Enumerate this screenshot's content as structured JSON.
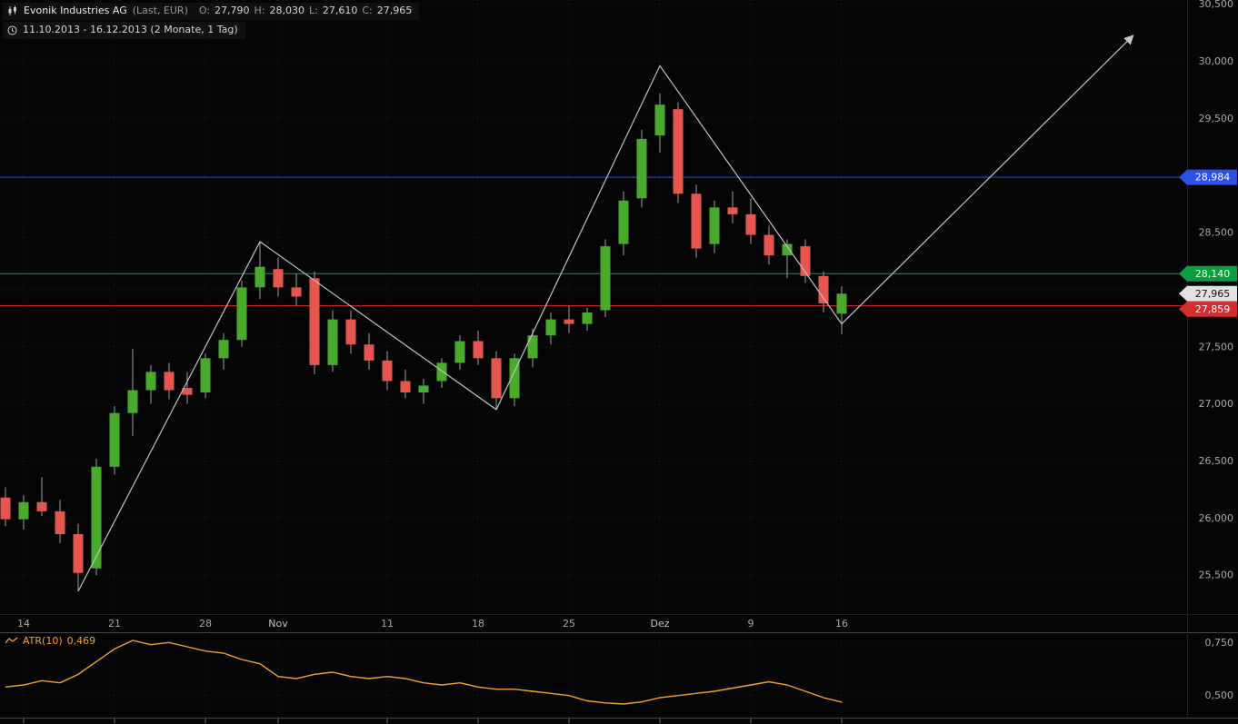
{
  "header": {
    "symbol": "Evonik Industries AG",
    "series_info": "(Last, EUR)",
    "ohlc": {
      "o_label": "O:",
      "o_value": "27,790",
      "h_label": "H:",
      "h_value": "28,030",
      "l_label": "L:",
      "l_value": "27,610",
      "c_label": "C:",
      "c_value": "27,965"
    },
    "range": "11.10.2013 - 16.12.2013 (2 Monate, 1 Tag)"
  },
  "indicator": {
    "name": "ATR(10)",
    "value": "0,469"
  },
  "colors": {
    "background": "#050505",
    "up": "#4aaa2e",
    "down": "#e4564e",
    "wick": "#a0a0a0",
    "grid": "#1c1c1c",
    "axis_text": "#a8a8a8",
    "trendline": "#c0c2c4",
    "atr_line": "#f0a32c",
    "hline_blue": "#2d50e8",
    "hline_green": "#0a9e3f",
    "hline_red": "#d23030",
    "current_label_bg": "#e2e2e2",
    "current_label_text": "#111111"
  },
  "chart_data": {
    "type": "candlestick",
    "instrument": "Evonik Industries AG (Last, EUR)",
    "period": "1 Tag",
    "candles": [
      {
        "d": "11.10",
        "o": 26.18,
        "h": 26.27,
        "l": 25.93,
        "c": 25.99
      },
      {
        "d": "14.10",
        "o": 25.99,
        "h": 26.2,
        "l": 25.9,
        "c": 26.14
      },
      {
        "d": "15.10",
        "o": 26.14,
        "h": 26.36,
        "l": 26.02,
        "c": 26.06
      },
      {
        "d": "16.10",
        "o": 26.06,
        "h": 26.16,
        "l": 25.78,
        "c": 25.86
      },
      {
        "d": "17.10",
        "o": 25.86,
        "h": 25.95,
        "l": 25.36,
        "c": 25.52
      },
      {
        "d": "18.10",
        "o": 25.56,
        "h": 26.52,
        "l": 25.5,
        "c": 26.45
      },
      {
        "d": "21.10",
        "o": 26.45,
        "h": 26.98,
        "l": 26.38,
        "c": 26.92
      },
      {
        "d": "22.10",
        "o": 26.92,
        "h": 27.48,
        "l": 26.72,
        "c": 27.12
      },
      {
        "d": "23.10",
        "o": 27.12,
        "h": 27.34,
        "l": 27.0,
        "c": 27.28
      },
      {
        "d": "24.10",
        "o": 27.28,
        "h": 27.36,
        "l": 27.04,
        "c": 27.12
      },
      {
        "d": "25.10",
        "o": 27.14,
        "h": 27.28,
        "l": 27.0,
        "c": 27.08
      },
      {
        "d": "28.10",
        "o": 27.1,
        "h": 27.44,
        "l": 27.05,
        "c": 27.4
      },
      {
        "d": "29.10",
        "o": 27.4,
        "h": 27.62,
        "l": 27.3,
        "c": 27.56
      },
      {
        "d": "30.10",
        "o": 27.56,
        "h": 28.08,
        "l": 27.5,
        "c": 28.02
      },
      {
        "d": "31.10",
        "o": 28.02,
        "h": 28.42,
        "l": 27.92,
        "c": 28.2
      },
      {
        "d": "01.11",
        "o": 28.18,
        "h": 28.28,
        "l": 27.94,
        "c": 28.02
      },
      {
        "d": "04.11",
        "o": 28.02,
        "h": 28.14,
        "l": 27.86,
        "c": 27.94
      },
      {
        "d": "05.11",
        "o": 28.1,
        "h": 28.16,
        "l": 27.26,
        "c": 27.34
      },
      {
        "d": "06.11",
        "o": 27.34,
        "h": 27.82,
        "l": 27.28,
        "c": 27.74
      },
      {
        "d": "07.11",
        "o": 27.74,
        "h": 27.82,
        "l": 27.44,
        "c": 27.52
      },
      {
        "d": "08.11",
        "o": 27.52,
        "h": 27.62,
        "l": 27.3,
        "c": 27.38
      },
      {
        "d": "11.11",
        "o": 27.38,
        "h": 27.46,
        "l": 27.12,
        "c": 27.2
      },
      {
        "d": "12.11",
        "o": 27.2,
        "h": 27.3,
        "l": 27.05,
        "c": 27.1
      },
      {
        "d": "13.11",
        "o": 27.1,
        "h": 27.22,
        "l": 27.0,
        "c": 27.16
      },
      {
        "d": "14.11",
        "o": 27.2,
        "h": 27.4,
        "l": 27.14,
        "c": 27.36
      },
      {
        "d": "15.11",
        "o": 27.36,
        "h": 27.6,
        "l": 27.3,
        "c": 27.55
      },
      {
        "d": "18.11",
        "o": 27.55,
        "h": 27.64,
        "l": 27.34,
        "c": 27.4
      },
      {
        "d": "19.11",
        "o": 27.4,
        "h": 27.46,
        "l": 26.95,
        "c": 27.05
      },
      {
        "d": "20.11",
        "o": 27.05,
        "h": 27.44,
        "l": 26.98,
        "c": 27.4
      },
      {
        "d": "21.11",
        "o": 27.4,
        "h": 27.66,
        "l": 27.32,
        "c": 27.6
      },
      {
        "d": "22.11",
        "o": 27.6,
        "h": 27.8,
        "l": 27.52,
        "c": 27.74
      },
      {
        "d": "25.11",
        "o": 27.74,
        "h": 27.86,
        "l": 27.62,
        "c": 27.7
      },
      {
        "d": "26.11",
        "o": 27.7,
        "h": 27.84,
        "l": 27.64,
        "c": 27.8
      },
      {
        "d": "27.11",
        "o": 27.82,
        "h": 28.44,
        "l": 27.76,
        "c": 28.38
      },
      {
        "d": "28.11",
        "o": 28.4,
        "h": 28.86,
        "l": 28.3,
        "c": 28.78
      },
      {
        "d": "29.11",
        "o": 28.8,
        "h": 29.4,
        "l": 28.72,
        "c": 29.32
      },
      {
        "d": "02.12",
        "o": 29.35,
        "h": 29.72,
        "l": 29.2,
        "c": 29.62
      },
      {
        "d": "03.12",
        "o": 29.58,
        "h": 29.64,
        "l": 28.76,
        "c": 28.84
      },
      {
        "d": "04.12",
        "o": 28.84,
        "h": 28.92,
        "l": 28.28,
        "c": 28.36
      },
      {
        "d": "05.12",
        "o": 28.4,
        "h": 28.78,
        "l": 28.32,
        "c": 28.72
      },
      {
        "d": "06.12",
        "o": 28.72,
        "h": 28.86,
        "l": 28.58,
        "c": 28.66
      },
      {
        "d": "09.12",
        "o": 28.66,
        "h": 28.8,
        "l": 28.4,
        "c": 28.48
      },
      {
        "d": "10.12",
        "o": 28.48,
        "h": 28.56,
        "l": 28.22,
        "c": 28.3
      },
      {
        "d": "11.12",
        "o": 28.3,
        "h": 28.44,
        "l": 28.1,
        "c": 28.4
      },
      {
        "d": "12.12",
        "o": 28.38,
        "h": 28.44,
        "l": 28.06,
        "c": 28.12
      },
      {
        "d": "13.12",
        "o": 28.12,
        "h": 28.16,
        "l": 27.8,
        "c": 27.88
      },
      {
        "d": "16.12",
        "o": 27.79,
        "h": 28.03,
        "l": 27.61,
        "c": 27.965
      }
    ],
    "x_labels": [
      {
        "i": 1,
        "label": "14",
        "month": false
      },
      {
        "i": 6,
        "label": "21",
        "month": false
      },
      {
        "i": 11,
        "label": "28",
        "month": false
      },
      {
        "i": 15,
        "label": "Nov",
        "month": true
      },
      {
        "i": 21,
        "label": "11",
        "month": false
      },
      {
        "i": 26,
        "label": "18",
        "month": false
      },
      {
        "i": 31,
        "label": "25",
        "month": false
      },
      {
        "i": 36,
        "label": "Dez",
        "month": true
      },
      {
        "i": 41,
        "label": "9",
        "month": false
      },
      {
        "i": 46,
        "label": "16",
        "month": false
      }
    ],
    "y_axis": {
      "min": 25.16,
      "max": 30.52,
      "gridline_values": [
        30.5,
        30.0,
        29.5,
        29.0,
        28.5,
        28.0,
        27.5,
        27.0,
        26.5,
        26.0,
        25.5
      ],
      "visible_ticks": [
        {
          "value": 30.5,
          "label": "30,500"
        },
        {
          "value": 30.0,
          "label": "30,000"
        },
        {
          "value": 29.5,
          "label": "29,500"
        },
        {
          "value": 28.5,
          "label": "28,500"
        },
        {
          "value": 27.5,
          "label": "27,500"
        },
        {
          "value": 27.0,
          "label": "27,000"
        },
        {
          "value": 26.5,
          "label": "26,500"
        },
        {
          "value": 26.0,
          "label": "26,000"
        },
        {
          "value": 25.5,
          "label": "25,500"
        }
      ]
    },
    "hlines": [
      {
        "value": 28.984,
        "label": "28,984",
        "color_key": "hline_blue"
      },
      {
        "value": 28.14,
        "label": "28,140",
        "color_key": "hline_green"
      },
      {
        "value": 27.859,
        "label": "27,859",
        "color_key": "hline_red"
      }
    ],
    "current_price": {
      "value": 27.965,
      "label": "27,965"
    },
    "trendline": {
      "points": [
        [
          4,
          25.36
        ],
        [
          14,
          28.42
        ],
        [
          27,
          26.95
        ],
        [
          36,
          29.96
        ],
        [
          46,
          27.7
        ],
        [
          62,
          30.22
        ]
      ],
      "arrow_end": true
    },
    "atr_panel": {
      "name": "ATR(10)",
      "current": 0.469,
      "min": 0.4,
      "max": 0.79,
      "ticks": [
        {
          "value": 0.75,
          "label": "0,750"
        },
        {
          "value": 0.5,
          "label": "0,500"
        }
      ],
      "values": [
        0.54,
        0.55,
        0.57,
        0.56,
        0.6,
        0.66,
        0.72,
        0.76,
        0.74,
        0.75,
        0.73,
        0.71,
        0.7,
        0.67,
        0.65,
        0.59,
        0.58,
        0.6,
        0.61,
        0.59,
        0.58,
        0.59,
        0.58,
        0.56,
        0.55,
        0.56,
        0.54,
        0.53,
        0.53,
        0.52,
        0.51,
        0.5,
        0.475,
        0.465,
        0.46,
        0.47,
        0.49,
        0.5,
        0.51,
        0.52,
        0.535,
        0.55,
        0.565,
        0.55,
        0.52,
        0.49,
        0.469
      ]
    }
  }
}
